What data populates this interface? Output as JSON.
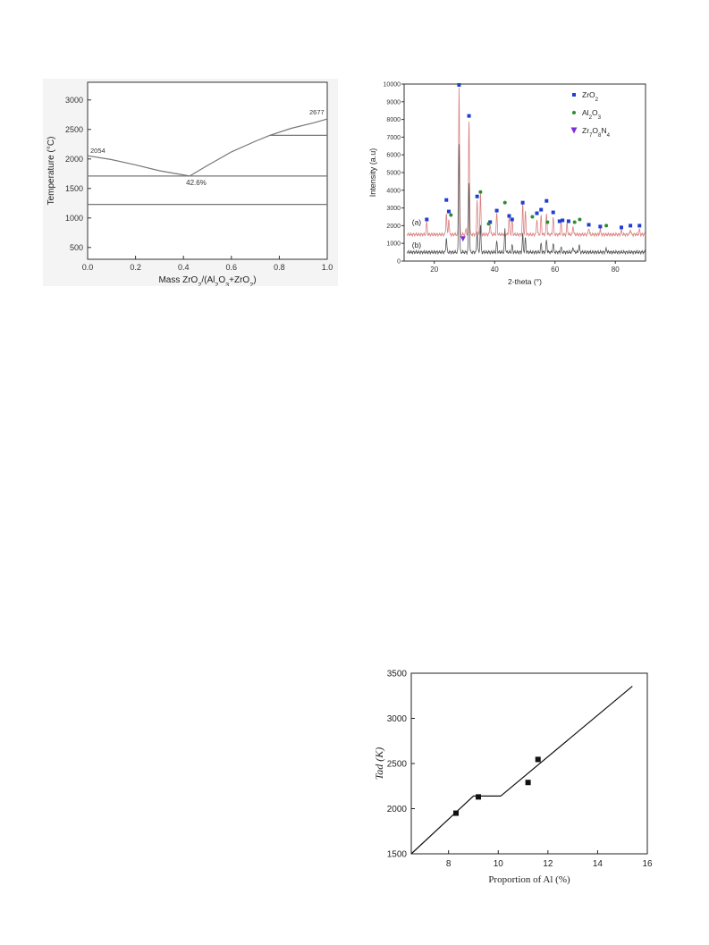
{
  "chart_data": [
    {
      "type": "line",
      "xlabel": "Mass ZrO2/(Al2O3+ZrO2)",
      "ylabel": "Temperature (°C)",
      "xlim": [
        0.0,
        1.0
      ],
      "ylim": [
        300,
        3300
      ],
      "xticks": [
        "0.0",
        "0.2",
        "0.4",
        "0.6",
        "0.8",
        "1.0"
      ],
      "yticks": [
        "500",
        "1000",
        "1500",
        "2000",
        "2500",
        "3000"
      ],
      "grid": false,
      "series": [
        {
          "x": [
            0.0,
            0.1,
            0.2,
            0.3,
            0.426
          ],
          "y": [
            2054,
            1990,
            1900,
            1800,
            1710
          ]
        },
        {
          "x": [
            0.426,
            0.5,
            0.6,
            0.7,
            0.76,
            0.85,
            0.95,
            1.0
          ],
          "y": [
            1710,
            1890,
            2120,
            2300,
            2400,
            2520,
            2620,
            2677
          ]
        },
        {
          "x": [
            0.76,
            1.0
          ],
          "y": [
            2400,
            2400
          ]
        },
        {
          "x": [
            0.0,
            1.0
          ],
          "y": [
            1710,
            1710
          ]
        },
        {
          "x": [
            0.0,
            1.0
          ],
          "y": [
            1230,
            1230
          ]
        }
      ],
      "annotations": [
        {
          "text": "2054",
          "x": 0.0,
          "y": 2054
        },
        {
          "text": "2677",
          "x": 1.0,
          "y": 2677
        },
        {
          "text": "42.6%",
          "x": 0.426,
          "y": 1710
        }
      ]
    },
    {
      "type": "line",
      "xlabel": "2-theta (°)",
      "ylabel": "Intensity (a.u)",
      "xlim": [
        10,
        90
      ],
      "ylim": [
        0,
        10000
      ],
      "xticks": [
        "20",
        "40",
        "60",
        "80"
      ],
      "yticks": [
        "0",
        "1000",
        "2000",
        "3000",
        "4000",
        "5000",
        "6000",
        "7000",
        "8000",
        "9000",
        "10000"
      ],
      "grid": false,
      "legend_position": "top-right",
      "legend": [
        {
          "label": "ZrO2",
          "color": "#1f3fd0",
          "marker": "square"
        },
        {
          "label": "Al2O3",
          "color": "#2e8b2e",
          "marker": "circle"
        },
        {
          "label": "Zr7O8N4",
          "color": "#7a2ed8",
          "marker": "triangle-down"
        }
      ],
      "series": [
        {
          "name": "(a)",
          "color": "#d98080",
          "baseline": 1500,
          "peaks": [
            [
              17.5,
              700
            ],
            [
              24.0,
              1200
            ],
            [
              24.8,
              900
            ],
            [
              28.2,
              8400
            ],
            [
              30.5,
              300
            ],
            [
              31.5,
              6500
            ],
            [
              34.2,
              2000
            ],
            [
              35.3,
              2300
            ],
            [
              38.5,
              600
            ],
            [
              40.7,
              1200
            ],
            [
              44.8,
              1000
            ],
            [
              45.8,
              800
            ],
            [
              49.3,
              1700
            ],
            [
              50.2,
              1300
            ],
            [
              54.0,
              900
            ],
            [
              55.4,
              1100
            ],
            [
              57.2,
              1200
            ],
            [
              59.4,
              1000
            ],
            [
              62.0,
              700
            ],
            [
              64.0,
              600
            ],
            [
              66.0,
              500
            ],
            [
              71.2,
              400
            ],
            [
              75.0,
              300
            ],
            [
              82.0,
              250
            ],
            [
              85.0,
              300
            ],
            [
              88.0,
              250
            ]
          ]
        },
        {
          "name": "(b)",
          "color": "#555555",
          "baseline": 500,
          "peaks": [
            [
              24.0,
              800
            ],
            [
              28.2,
              6200
            ],
            [
              31.5,
              4000
            ],
            [
              34.2,
              1200
            ],
            [
              35.3,
              1500
            ],
            [
              40.7,
              600
            ],
            [
              43.4,
              1300
            ],
            [
              45.8,
              400
            ],
            [
              49.3,
              1000
            ],
            [
              50.2,
              800
            ],
            [
              55.4,
              500
            ],
            [
              57.2,
              700
            ],
            [
              59.4,
              500
            ],
            [
              62.0,
              300
            ],
            [
              66.0,
              300
            ],
            [
              68.0,
              400
            ],
            [
              77.0,
              200
            ]
          ]
        }
      ],
      "markers": {
        "ZrO2": [
          [
            17.5,
            2350
          ],
          [
            24.0,
            3450
          ],
          [
            24.8,
            2800
          ],
          [
            28.2,
            9950
          ],
          [
            31.5,
            8200
          ],
          [
            34.2,
            3650
          ],
          [
            38.5,
            2200
          ],
          [
            40.7,
            2850
          ],
          [
            44.8,
            2550
          ],
          [
            45.8,
            2350
          ],
          [
            49.3,
            3300
          ],
          [
            54.0,
            2700
          ],
          [
            55.4,
            2900
          ],
          [
            57.2,
            3400
          ],
          [
            59.4,
            2750
          ],
          [
            61.5,
            2250
          ],
          [
            62.5,
            2300
          ],
          [
            64.5,
            2250
          ],
          [
            71.2,
            2050
          ],
          [
            75.0,
            1950
          ],
          [
            82.0,
            1900
          ],
          [
            85.0,
            2000
          ],
          [
            88.0,
            2000
          ]
        ],
        "Al2O3": [
          [
            25.5,
            2600
          ],
          [
            35.3,
            3900
          ],
          [
            38.0,
            2100
          ],
          [
            43.4,
            3300
          ],
          [
            52.5,
            2500
          ],
          [
            57.5,
            2200
          ],
          [
            66.5,
            2200
          ],
          [
            68.2,
            2350
          ],
          [
            77.0,
            2000
          ]
        ],
        "Zr7O8N4": [
          [
            29.5,
            1250
          ]
        ]
      },
      "annotations": [
        {
          "text": "(a)",
          "x": 12,
          "y": 2200
        },
        {
          "text": "(b)",
          "x": 12,
          "y": 900
        }
      ]
    },
    {
      "type": "scatter",
      "xlabel": "Proportion of Al (%)",
      "ylabel": "Tad (K)",
      "xlim": [
        6.5,
        16
      ],
      "ylim": [
        1500,
        3500
      ],
      "xticks": [
        "8",
        "10",
        "12",
        "14",
        "16"
      ],
      "yticks": [
        "1500",
        "2000",
        "2500",
        "3000",
        "3500"
      ],
      "grid": false,
      "series": [
        {
          "type": "scatter",
          "x": [
            8.3,
            9.2,
            11.2,
            11.6
          ],
          "y": [
            1950,
            2130,
            2290,
            2545
          ]
        },
        {
          "type": "line",
          "x": [
            6.5,
            9.0,
            10.1,
            15.4
          ],
          "y": [
            1500,
            2140,
            2140,
            3355
          ]
        }
      ]
    }
  ]
}
